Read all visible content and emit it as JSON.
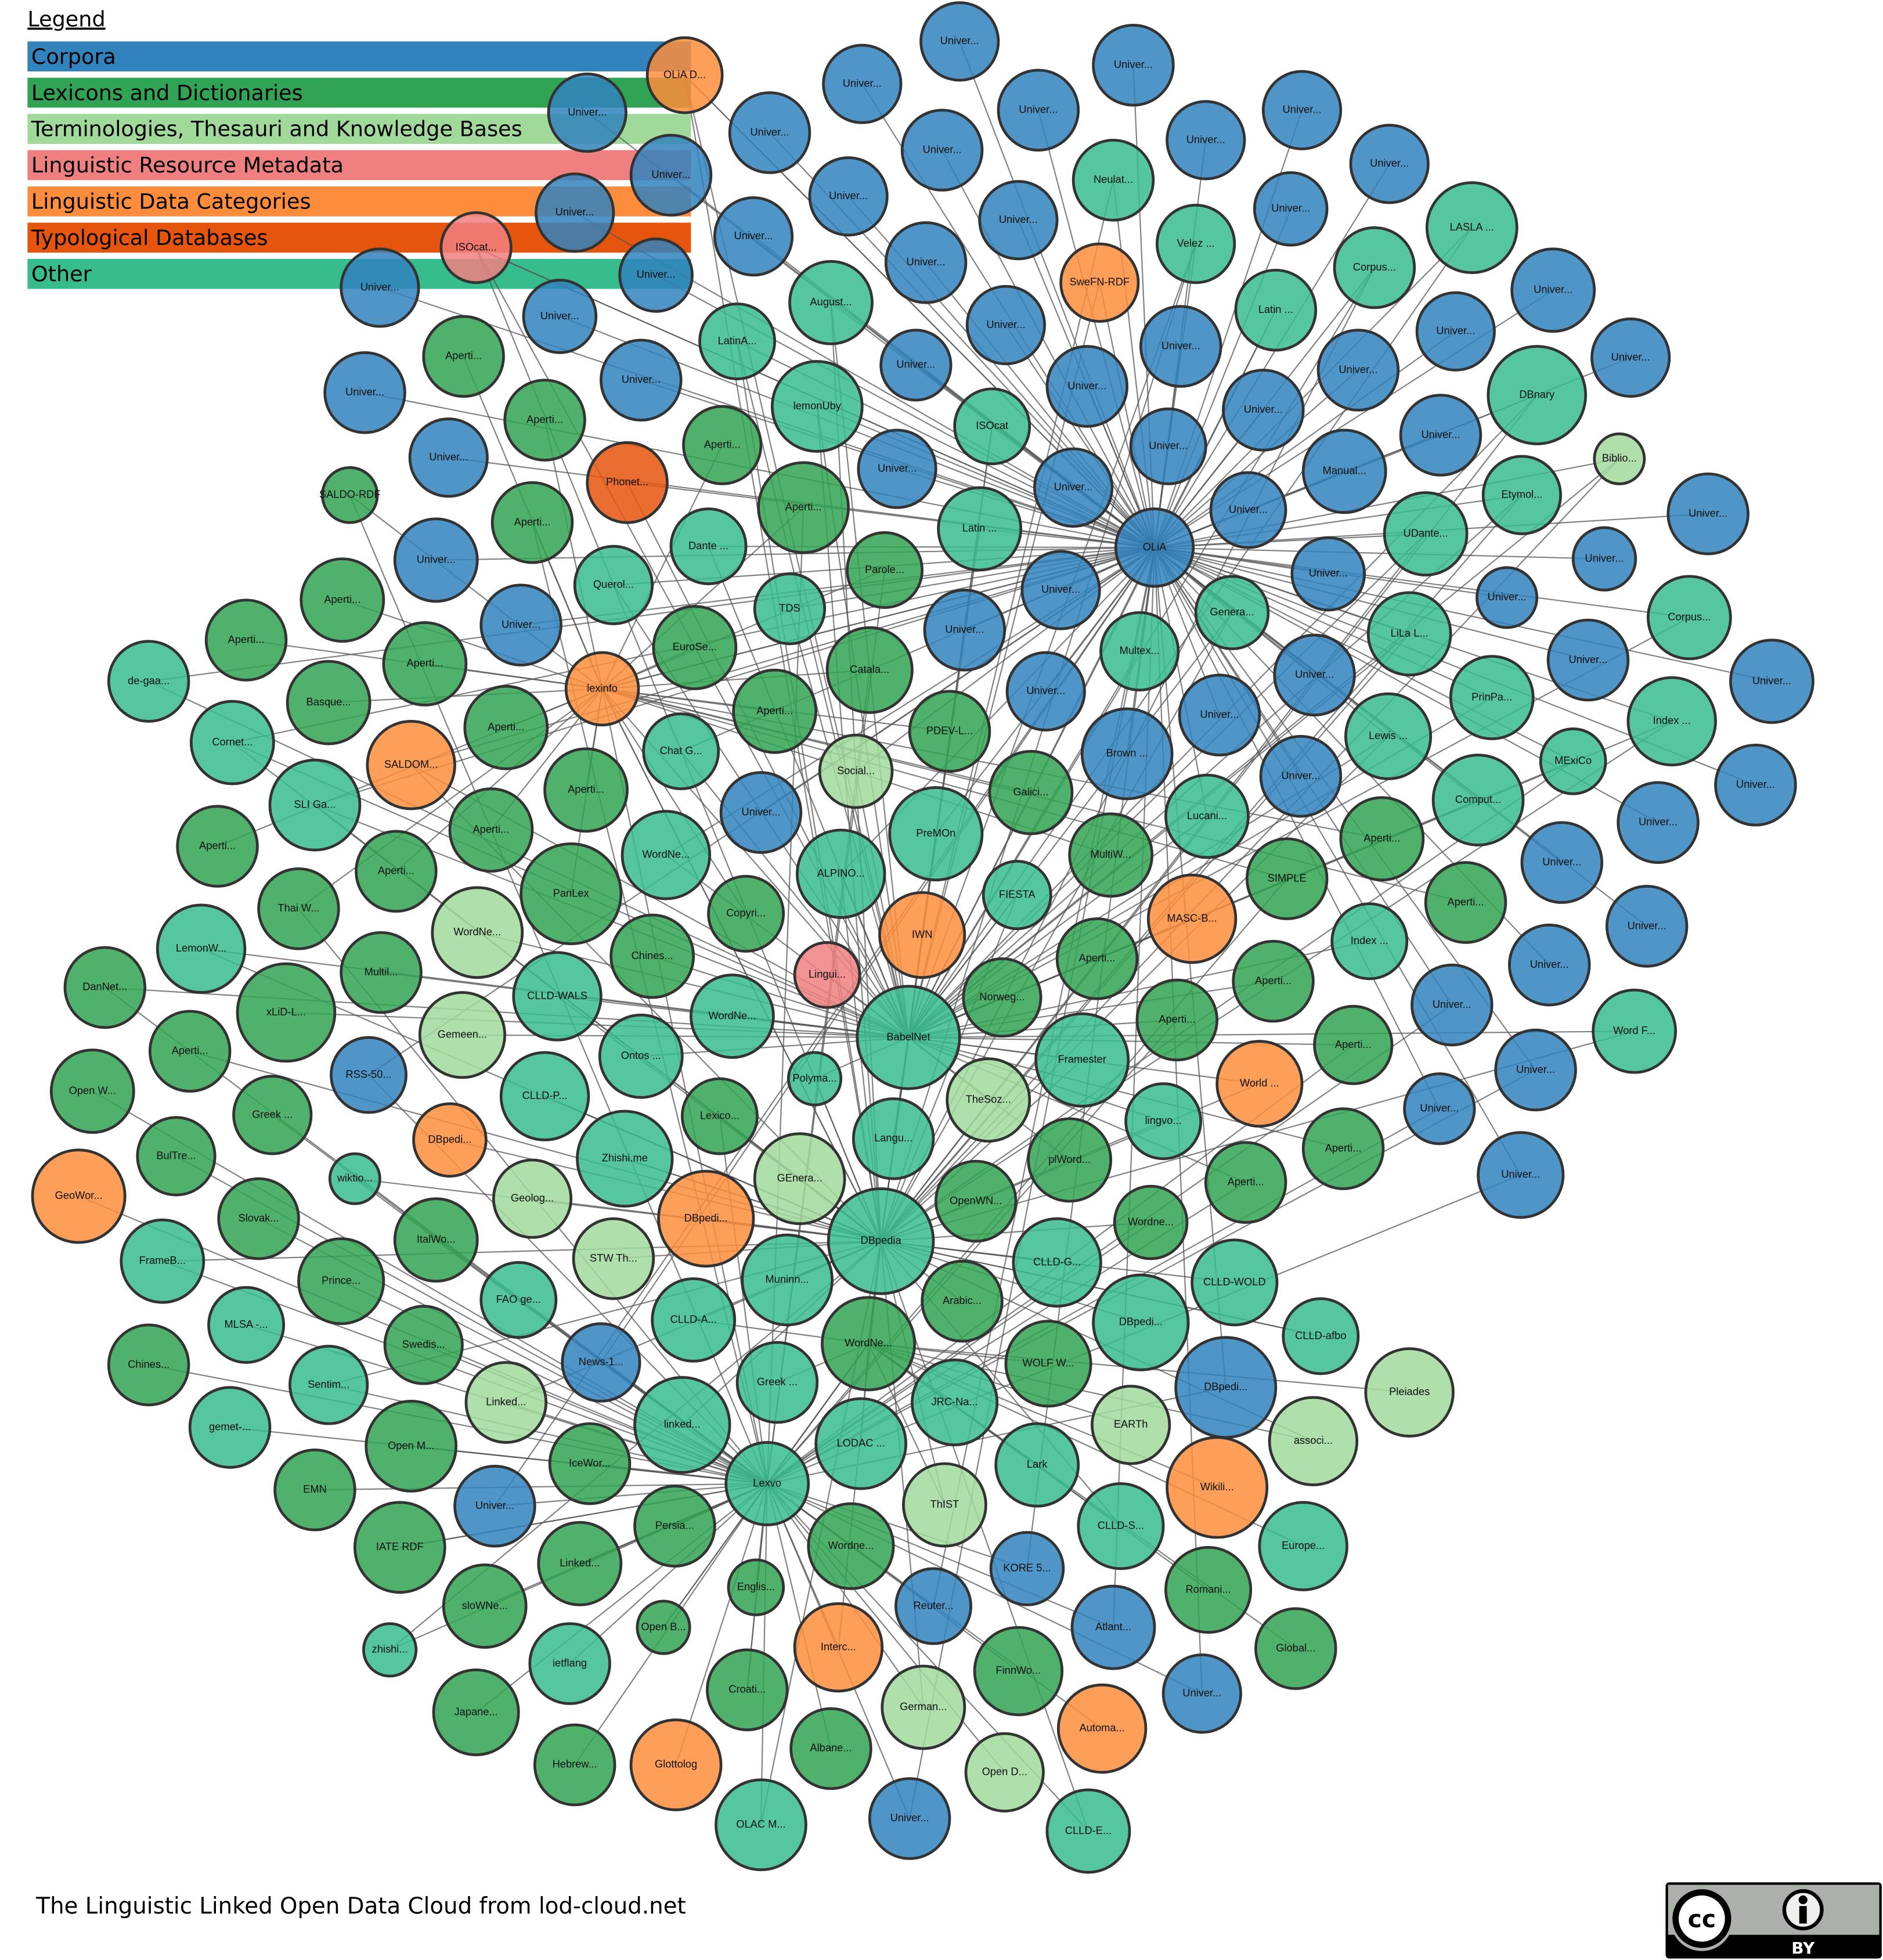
{
  "legend": {
    "title": "Legend",
    "items": [
      {
        "key": "C",
        "label": "Corpora",
        "color": "#3182bd"
      },
      {
        "key": "L",
        "label": "Lexicons and Dictionaries",
        "color": "#31a354"
      },
      {
        "key": "T",
        "label": "Terminologies, Thesauri and Knowledge Bases",
        "color": "#a1d99b"
      },
      {
        "key": "M",
        "label": "Linguistic Resource Metadata",
        "color": "#f08080"
      },
      {
        "key": "D",
        "label": "Linguistic Data Categories",
        "color": "#fd8d3c"
      },
      {
        "key": "Y",
        "label": "Typological Databases",
        "color": "#e6550d"
      },
      {
        "key": "O",
        "label": "Other",
        "color": "#37bc8e"
      }
    ]
  },
  "footer": {
    "caption": "The Linguistic Linked Open Data Cloud from lod-cloud.net",
    "license_badge": "CC BY",
    "license_badge_text": "BY"
  },
  "nodes": [
    [
      "OLiA D...",
      "D"
    ],
    [
      "Univer...",
      "C"
    ],
    [
      "Univer...",
      "C"
    ],
    [
      "Univer...",
      "C"
    ],
    [
      "ISOcat...",
      "M"
    ],
    [
      "Univer...",
      "C"
    ],
    [
      "Univer...",
      "C"
    ],
    [
      "Univer...",
      "C"
    ],
    [
      "Univer...",
      "C"
    ],
    [
      "Univer...",
      "C"
    ],
    [
      "Univer...",
      "C"
    ],
    [
      "Univer...",
      "C"
    ],
    [
      "Univer...",
      "C"
    ],
    [
      "Univer...",
      "C"
    ],
    [
      "Univer...",
      "C"
    ],
    [
      "Univer...",
      "C"
    ],
    [
      "Univer...",
      "C"
    ],
    [
      "Neulat...",
      "O"
    ],
    [
      "Univer...",
      "C"
    ],
    [
      "Univer...",
      "C"
    ],
    [
      "Univer...",
      "C"
    ],
    [
      "LASLA ...",
      "O"
    ],
    [
      "Velez ...",
      "O"
    ],
    [
      "Univer...",
      "C"
    ],
    [
      "August...",
      "O"
    ],
    [
      "SweFN-RDF",
      "D"
    ],
    [
      "Corpus...",
      "O"
    ],
    [
      "Univer...",
      "C"
    ],
    [
      "Univer...",
      "C"
    ],
    [
      "Latin ...",
      "O"
    ],
    [
      "LatinA...",
      "O"
    ],
    [
      "Aperti...",
      "L"
    ],
    [
      "Univer...",
      "C"
    ],
    [
      "Univer...",
      "C"
    ],
    [
      "Univer...",
      "C"
    ],
    [
      "Univer...",
      "C"
    ],
    [
      "Univer...",
      "C"
    ],
    [
      "Univer...",
      "C"
    ],
    [
      "Univer...",
      "C"
    ],
    [
      "Univer...",
      "C"
    ],
    [
      "lemonUby",
      "O"
    ],
    [
      "Univer...",
      "C"
    ],
    [
      "DBnary",
      "O"
    ],
    [
      "Aperti...",
      "L"
    ],
    [
      "ISOcat",
      "O"
    ],
    [
      "Univer...",
      "C"
    ],
    [
      "Aperti...",
      "L"
    ],
    [
      "Univer...",
      "C"
    ],
    [
      "Univer...",
      "C"
    ],
    [
      "Univer...",
      "C"
    ],
    [
      "Biblio...",
      "T"
    ],
    [
      "Phonet...",
      "Y"
    ],
    [
      "Univer...",
      "C"
    ],
    [
      "Manual...",
      "C"
    ],
    [
      "SALDO-RDF",
      "L"
    ],
    [
      "Univer...",
      "C"
    ],
    [
      "Etymol...",
      "O"
    ],
    [
      "Aperti...",
      "L"
    ],
    [
      "Univer...",
      "C"
    ],
    [
      "Univer...",
      "C"
    ],
    [
      "Aperti...",
      "L"
    ],
    [
      "Latin ...",
      "O"
    ],
    [
      "OLiA",
      "C"
    ],
    [
      "Dante ...",
      "O"
    ],
    [
      "UDante...",
      "O"
    ],
    [
      "Univer...",
      "C"
    ],
    [
      "Parole...",
      "L"
    ],
    [
      "Univer...",
      "C"
    ],
    [
      "Univer...",
      "C"
    ],
    [
      "Querol...",
      "O"
    ],
    [
      "Univer...",
      "C"
    ],
    [
      "Aperti...",
      "L"
    ],
    [
      "Univer...",
      "C"
    ],
    [
      "TDS",
      "O"
    ],
    [
      "Genera...",
      "O"
    ],
    [
      "Corpus...",
      "O"
    ],
    [
      "Univer...",
      "C"
    ],
    [
      "Univer...",
      "C"
    ],
    [
      "LiLa L...",
      "O"
    ],
    [
      "Aperti...",
      "L"
    ],
    [
      "EuroSe...",
      "L"
    ],
    [
      "Multex...",
      "O"
    ],
    [
      "Univer...",
      "C"
    ],
    [
      "Aperti...",
      "L"
    ],
    [
      "Catala...",
      "L"
    ],
    [
      "de-gaa...",
      "O"
    ],
    [
      "Univer...",
      "C"
    ],
    [
      "Univer...",
      "C"
    ],
    [
      "lexinfo",
      "D"
    ],
    [
      "Basque...",
      "L"
    ],
    [
      "Univer...",
      "C"
    ],
    [
      "PrinPa...",
      "O"
    ],
    [
      "Aperti...",
      "L"
    ],
    [
      "Univer...",
      "C"
    ],
    [
      "Index ...",
      "O"
    ],
    [
      "Aperti...",
      "L"
    ],
    [
      "Lewis ...",
      "O"
    ],
    [
      "PDEV-L...",
      "L"
    ],
    [
      "Cornet...",
      "O"
    ],
    [
      "Chat G...",
      "O"
    ],
    [
      "SALDOM...",
      "D"
    ],
    [
      "Brown ...",
      "C"
    ],
    [
      "MExiCo",
      "O"
    ],
    [
      "Social...",
      "T"
    ],
    [
      "Galici...",
      "L"
    ],
    [
      "Univer...",
      "C"
    ],
    [
      "Aperti...",
      "L"
    ],
    [
      "Univer...",
      "C"
    ],
    [
      "SLI Ga...",
      "O"
    ],
    [
      "Comput...",
      "O"
    ],
    [
      "Univer...",
      "C"
    ],
    [
      "Lucani...",
      "O"
    ],
    [
      "Univer...",
      "C"
    ],
    [
      "Aperti...",
      "L"
    ],
    [
      "PreMOn",
      "O"
    ],
    [
      "Aperti...",
      "L"
    ],
    [
      "Aperti...",
      "L"
    ],
    [
      "WordNe...",
      "O"
    ],
    [
      "MultiW...",
      "L"
    ],
    [
      "Aperti...",
      "L"
    ],
    [
      "SIMPLE",
      "L"
    ],
    [
      "PanLex",
      "L"
    ],
    [
      "ALPINO...",
      "O"
    ],
    [
      "Univer...",
      "C"
    ],
    [
      "FIESTA",
      "O"
    ],
    [
      "Aperti...",
      "L"
    ],
    [
      "Thai W...",
      "L"
    ],
    [
      "MASC-B...",
      "D"
    ],
    [
      "Copyri...",
      "L"
    ],
    [
      "WordNe...",
      "T"
    ],
    [
      "Univer...",
      "C"
    ],
    [
      "IWN",
      "D"
    ],
    [
      "LemonW...",
      "O"
    ],
    [
      "Index ...",
      "O"
    ],
    [
      "Chines...",
      "L"
    ],
    [
      "Lingui...",
      "M"
    ],
    [
      "Aperti...",
      "L"
    ],
    [
      "Multil...",
      "L"
    ],
    [
      "Univer...",
      "C"
    ],
    [
      "Aperti...",
      "L"
    ],
    [
      "xLiD-L...",
      "L"
    ],
    [
      "DanNet...",
      "L"
    ],
    [
      "CLLD-WALS",
      "O"
    ],
    [
      "Norweg...",
      "L"
    ],
    [
      "Univer...",
      "C"
    ],
    [
      "WordNe...",
      "O"
    ],
    [
      "BabelNet",
      "O"
    ],
    [
      "Aperti...",
      "L"
    ],
    [
      "Word F...",
      "O"
    ],
    [
      "Gemeen...",
      "T"
    ],
    [
      "Aperti...",
      "L"
    ],
    [
      "Aperti...",
      "L"
    ],
    [
      "Framester",
      "O"
    ],
    [
      "Ontos ...",
      "O"
    ],
    [
      "RSS-50...",
      "C"
    ],
    [
      "Univer...",
      "C"
    ],
    [
      "Polyma...",
      "O"
    ],
    [
      "Open W...",
      "L"
    ],
    [
      "CLLD-P...",
      "O"
    ],
    [
      "TheSoz...",
      "T"
    ],
    [
      "World ...",
      "D"
    ],
    [
      "Univer...",
      "C"
    ],
    [
      "Lexico...",
      "L"
    ],
    [
      "Greek ...",
      "L"
    ],
    [
      "lingvo...",
      "O"
    ],
    [
      "DBpedi...",
      "D"
    ],
    [
      "BulTre...",
      "L"
    ],
    [
      "Langu...",
      "O"
    ],
    [
      "Zhishi.me",
      "O"
    ],
    [
      "plWord...",
      "L"
    ],
    [
      "Aperti...",
      "L"
    ],
    [
      "Univer...",
      "C"
    ],
    [
      "wiktio...",
      "O"
    ],
    [
      "GEnera...",
      "T"
    ],
    [
      "Aperti...",
      "L"
    ],
    [
      "GeoWor...",
      "D"
    ],
    [
      "OpenWN...",
      "L"
    ],
    [
      "Geolog...",
      "T"
    ],
    [
      "DBpedi...",
      "D"
    ],
    [
      "Slovak...",
      "L"
    ],
    [
      "Wordne...",
      "L"
    ],
    [
      "DBpedia",
      "O"
    ],
    [
      "ItalWo...",
      "L"
    ],
    [
      "STW Th...",
      "T"
    ],
    [
      "FrameB...",
      "O"
    ],
    [
      "Prince...",
      "L"
    ],
    [
      "CLLD-G...",
      "O"
    ],
    [
      "CLLD-WOLD",
      "O"
    ],
    [
      "Muninn...",
      "O"
    ],
    [
      "FAO ge...",
      "O"
    ],
    [
      "Arabic...",
      "L"
    ],
    [
      "DBpedi...",
      "O"
    ],
    [
      "CLLD-A...",
      "O"
    ],
    [
      "MLSA -...",
      "O"
    ],
    [
      "CLLD-afbo",
      "O"
    ],
    [
      "WordNe...",
      "L"
    ],
    [
      "Chines...",
      "L"
    ],
    [
      "Swedis...",
      "L"
    ],
    [
      "News-1...",
      "C"
    ],
    [
      "WOLF W...",
      "L"
    ],
    [
      "DBpedi...",
      "C"
    ],
    [
      "Pleiades",
      "T"
    ],
    [
      "Sentim...",
      "O"
    ],
    [
      "Greek ...",
      "O"
    ],
    [
      "Linked...",
      "T"
    ],
    [
      "JRC-Na...",
      "O"
    ],
    [
      "linked...",
      "O"
    ],
    [
      "EARTh",
      "T"
    ],
    [
      "associ...",
      "T"
    ],
    [
      "gemet-...",
      "O"
    ],
    [
      "Open M...",
      "L"
    ],
    [
      "LODAC ...",
      "O"
    ],
    [
      "IceWor...",
      "L"
    ],
    [
      "Lark",
      "O"
    ],
    [
      "EMN",
      "L"
    ],
    [
      "Lexvo",
      "O"
    ],
    [
      "ThIST",
      "T"
    ],
    [
      "Wikili...",
      "D"
    ],
    [
      "Univer...",
      "C"
    ],
    [
      "Persia...",
      "L"
    ],
    [
      "CLLD-S...",
      "O"
    ],
    [
      "Europe...",
      "O"
    ],
    [
      "IATE RDF",
      "L"
    ],
    [
      "Wordne...",
      "L"
    ],
    [
      "KORE 5...",
      "C"
    ],
    [
      "Linked...",
      "L"
    ],
    [
      "Englis...",
      "L"
    ],
    [
      "Romani...",
      "L"
    ],
    [
      "Reuter...",
      "C"
    ],
    [
      "sloWNe...",
      "L"
    ],
    [
      "Atlant...",
      "C"
    ],
    [
      "Open B...",
      "L"
    ],
    [
      "zhishi...",
      "O"
    ],
    [
      "Global...",
      "L"
    ],
    [
      "Interc...",
      "D"
    ],
    [
      "ietflang",
      "O"
    ],
    [
      "FinnWo...",
      "L"
    ],
    [
      "Croati...",
      "L"
    ],
    [
      "Univer...",
      "C"
    ],
    [
      "Japane...",
      "L"
    ],
    [
      "German...",
      "T"
    ],
    [
      "Automa...",
      "D"
    ],
    [
      "Hebrew...",
      "L"
    ],
    [
      "Glottolog",
      "D"
    ],
    [
      "Albane...",
      "L"
    ],
    [
      "Open D...",
      "T"
    ],
    [
      "OLAC M...",
      "O"
    ],
    [
      "Univer...",
      "C"
    ],
    [
      "CLLD-E...",
      "O"
    ]
  ]
}
